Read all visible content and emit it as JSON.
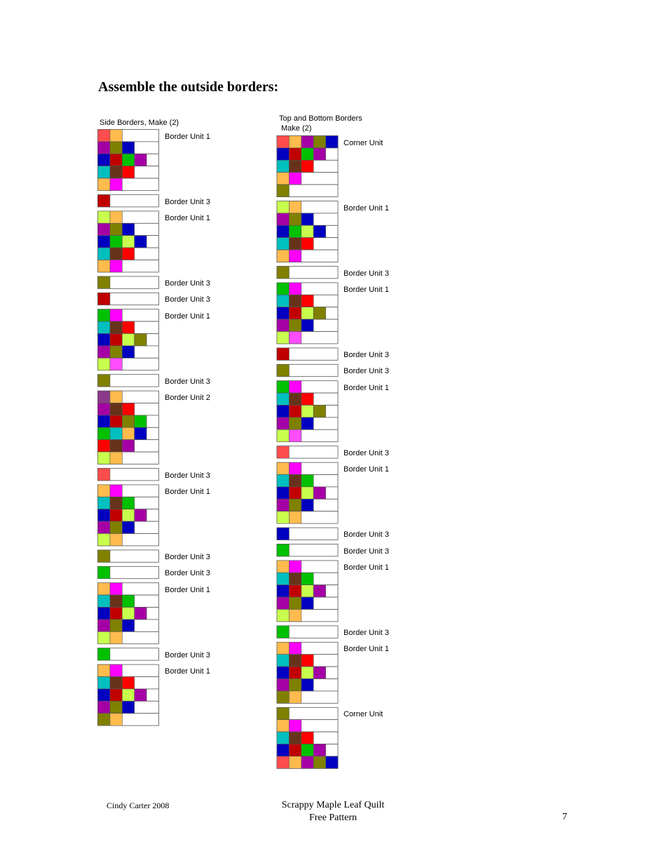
{
  "title": "Assemble the outside borders:",
  "side": {
    "title": "Side Borders, Make (2)",
    "units": [
      {
        "label": "Border Unit 1",
        "rows": [
          [
            "#FF4D4D",
            "#FFBB4D"
          ],
          [
            "#A500A5",
            "#808000",
            "#0000C0"
          ],
          [
            "#0000C0",
            "#C00000",
            "#00C000",
            "#A500A5"
          ],
          [
            "#00BFBF",
            "#66331A",
            "#FF0000"
          ],
          [
            "#FFBB4D",
            "#FF00FF"
          ]
        ]
      },
      {
        "label": "Border Unit 3",
        "rows": [
          [
            "#C00000"
          ]
        ]
      },
      {
        "label": "Border Unit 1",
        "rows": [
          [
            "#C8FF4D",
            "#FFBB4D"
          ],
          [
            "#A500A5",
            "#808000",
            "#0000C0"
          ],
          [
            "#0000C0",
            "#00C000",
            "#C8FF4D",
            "#0000C0"
          ],
          [
            "#00BFBF",
            "#66331A",
            "#FF0000"
          ],
          [
            "#FFBB4D",
            "#FF00FF"
          ]
        ]
      },
      {
        "label": "Border Unit 3",
        "rows": [
          [
            "#808000"
          ]
        ]
      },
      {
        "label": "Border Unit 3",
        "rows": [
          [
            "#C00000"
          ]
        ]
      },
      {
        "label": "Border Unit 1",
        "rows": [
          [
            "#00C000",
            "#FF00FF"
          ],
          [
            "#00BFBF",
            "#66331A",
            "#FF0000"
          ],
          [
            "#0000C0",
            "#C00000",
            "#C8FF4D",
            "#808000"
          ],
          [
            "#A500A5",
            "#808000",
            "#0000C0"
          ],
          [
            "#C8FF4D",
            "#FF4DFF"
          ]
        ]
      },
      {
        "label": "Border Unit 3",
        "rows": [
          [
            "#808000"
          ]
        ]
      },
      {
        "label": "Border Unit 2",
        "rows": [
          [
            "#8B3A8B",
            "#FFBB4D"
          ],
          [
            "#A500A5",
            "#66331A",
            "#FF0000"
          ],
          [
            "#0000C0",
            "#C00000",
            "#808000",
            "#00C000"
          ],
          [
            "#00C000",
            "#00BFBF",
            "#FFBB4D",
            "#0000C0"
          ],
          [
            "#FF0000",
            "#66331A",
            "#A500A5"
          ],
          [
            "#C8FF4D",
            "#FFBB4D"
          ]
        ]
      },
      {
        "label": "Border Unit 3",
        "rows": [
          [
            "#FF4D4D"
          ]
        ]
      },
      {
        "label": "Border Unit 1",
        "rows": [
          [
            "#FFBB4D",
            "#FF00FF"
          ],
          [
            "#00BFBF",
            "#66331A",
            "#00C000"
          ],
          [
            "#0000C0",
            "#C00000",
            "#C8FF4D",
            "#A500A5"
          ],
          [
            "#A500A5",
            "#808000",
            "#0000C0"
          ],
          [
            "#C8FF4D",
            "#FFBB4D"
          ]
        ]
      },
      {
        "label": "Border Unit 3",
        "rows": [
          [
            "#808000"
          ]
        ]
      },
      {
        "label": "Border Unit 3",
        "rows": [
          [
            "#00C000"
          ]
        ]
      },
      {
        "label": "Border Unit 1",
        "rows": [
          [
            "#FFBB4D",
            "#FF00FF"
          ],
          [
            "#00BFBF",
            "#66331A",
            "#00C000"
          ],
          [
            "#0000C0",
            "#C00000",
            "#C8FF4D",
            "#A500A5"
          ],
          [
            "#A500A5",
            "#808000",
            "#0000C0"
          ],
          [
            "#C8FF4D",
            "#FFBB4D"
          ]
        ]
      },
      {
        "label": "Border Unit 3",
        "rows": [
          [
            "#00C000"
          ]
        ]
      },
      {
        "label": "Border Unit 1",
        "rows": [
          [
            "#FFBB4D",
            "#FF00FF"
          ],
          [
            "#00BFBF",
            "#66331A",
            "#FF0000"
          ],
          [
            "#0000C0",
            "#C00000",
            "#C8FF4D",
            "#A500A5"
          ],
          [
            "#A500A5",
            "#808000",
            "#0000C0"
          ],
          [
            "#808000",
            "#FFBB4D"
          ]
        ]
      }
    ]
  },
  "topbottom": {
    "title_line1": "Top and Bottom Borders",
    "title_line2": "Make (2)",
    "units": [
      {
        "label": "Corner Unit",
        "rows": [
          [
            "#FF4D4D",
            "#FFBB4D",
            "#A500A5",
            "#808000",
            "#0000C0"
          ],
          [
            "#0000C0",
            "#C00000",
            "#00C000",
            "#A500A5"
          ],
          [
            "#00BFBF",
            "#66331A",
            "#FF0000"
          ],
          [
            "#FFBB4D",
            "#FF00FF"
          ],
          [
            "#808000"
          ]
        ]
      },
      {
        "label": "Border Unit 1",
        "rows": [
          [
            "#C8FF4D",
            "#FFBB4D"
          ],
          [
            "#A500A5",
            "#808000",
            "#0000C0"
          ],
          [
            "#0000C0",
            "#00C000",
            "#C8FF4D",
            "#0000C0"
          ],
          [
            "#00BFBF",
            "#66331A",
            "#FF0000"
          ],
          [
            "#FFBB4D",
            "#FF00FF"
          ]
        ]
      },
      {
        "label": "Border Unit 3",
        "rows": [
          [
            "#808000"
          ]
        ]
      },
      {
        "label": "Border Unit 1",
        "rows": [
          [
            "#00C000",
            "#FF00FF"
          ],
          [
            "#00BFBF",
            "#66331A",
            "#FF0000"
          ],
          [
            "#0000C0",
            "#C00000",
            "#C8FF4D",
            "#808000"
          ],
          [
            "#A500A5",
            "#808000",
            "#0000C0"
          ],
          [
            "#C8FF4D",
            "#FF4DFF"
          ]
        ]
      },
      {
        "label": "Border Unit 3",
        "rows": [
          [
            "#C00000"
          ]
        ]
      },
      {
        "label": "Border Unit 3",
        "rows": [
          [
            "#808000"
          ]
        ]
      },
      {
        "label": "Border Unit 1",
        "rows": [
          [
            "#00C000",
            "#FF00FF"
          ],
          [
            "#00BFBF",
            "#66331A",
            "#FF0000"
          ],
          [
            "#0000C0",
            "#C00000",
            "#C8FF4D",
            "#808000"
          ],
          [
            "#A500A5",
            "#808000",
            "#0000C0"
          ],
          [
            "#C8FF4D",
            "#FF4DFF"
          ]
        ]
      },
      {
        "label": "Border Unit 3",
        "rows": [
          [
            "#FF4D4D"
          ]
        ]
      },
      {
        "label": "Border Unit 1",
        "rows": [
          [
            "#FFBB4D",
            "#FF00FF"
          ],
          [
            "#00BFBF",
            "#66331A",
            "#00C000"
          ],
          [
            "#0000C0",
            "#C00000",
            "#C8FF4D",
            "#A500A5"
          ],
          [
            "#A500A5",
            "#808000",
            "#0000C0"
          ],
          [
            "#C8FF4D",
            "#FFBB4D"
          ]
        ]
      },
      {
        "label": "Border Unit 3",
        "rows": [
          [
            "#0000C0"
          ]
        ]
      },
      {
        "label": "Border Unit 3",
        "rows": [
          [
            "#00C000"
          ]
        ]
      },
      {
        "label": "Border Unit 1",
        "rows": [
          [
            "#FFBB4D",
            "#FF00FF"
          ],
          [
            "#00BFBF",
            "#66331A",
            "#00C000"
          ],
          [
            "#0000C0",
            "#C00000",
            "#C8FF4D",
            "#A500A5"
          ],
          [
            "#A500A5",
            "#808000",
            "#0000C0"
          ],
          [
            "#C8FF4D",
            "#FFBB4D"
          ]
        ]
      },
      {
        "label": "Border Unit 3",
        "rows": [
          [
            "#00C000"
          ]
        ]
      },
      {
        "label": "Border Unit 1",
        "rows": [
          [
            "#FFBB4D",
            "#FF00FF"
          ],
          [
            "#00BFBF",
            "#66331A",
            "#FF0000"
          ],
          [
            "#0000C0",
            "#C00000",
            "#C8FF4D",
            "#A500A5"
          ],
          [
            "#A500A5",
            "#808000",
            "#0000C0"
          ],
          [
            "#808000",
            "#FFBB4D"
          ]
        ]
      },
      {
        "label": "Corner Unit",
        "rows": [
          [
            "#808000"
          ],
          [
            "#FFBB4D",
            "#FF00FF"
          ],
          [
            "#00BFBF",
            "#66331A",
            "#FF0000"
          ],
          [
            "#0000C0",
            "#C00000",
            "#00C000",
            "#A500A5"
          ],
          [
            "#FF4D4D",
            "#FFBB4D",
            "#A500A5",
            "#808000",
            "#0000C0"
          ]
        ]
      }
    ]
  },
  "footer": {
    "author": "Cindy Carter 2008",
    "pattern_line1": "Scrappy Maple Leaf Quilt",
    "pattern_line2": "Free Pattern",
    "page": "7"
  }
}
